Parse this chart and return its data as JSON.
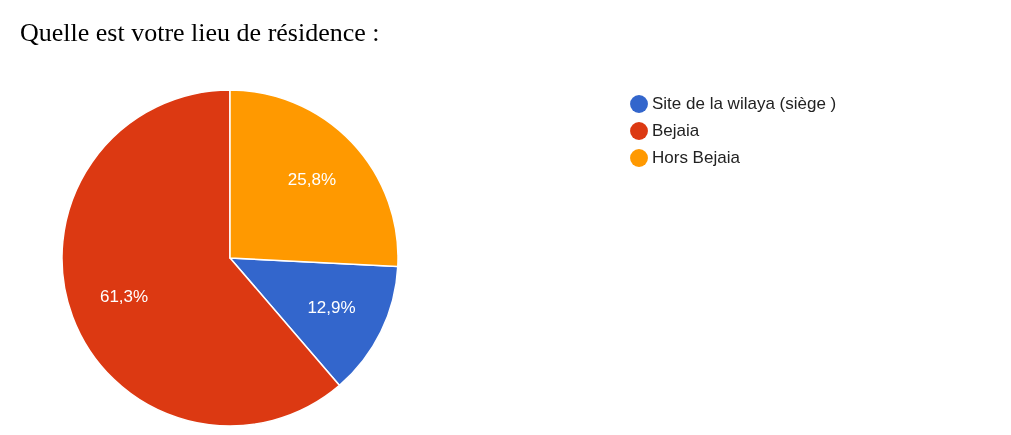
{
  "chart_data": {
    "type": "pie",
    "title": "Quelle est votre lieu de résidence :",
    "categories": [
      "Site de la wilaya (siège )",
      "Bejaia",
      "Hors Bejaia"
    ],
    "values": [
      12.9,
      61.3,
      25.8
    ],
    "colors": [
      "#3366cc",
      "#dc3912",
      "#ff9900"
    ],
    "value_labels": [
      "12,9%",
      "61,3%",
      "25,8%"
    ],
    "legend": "right"
  }
}
